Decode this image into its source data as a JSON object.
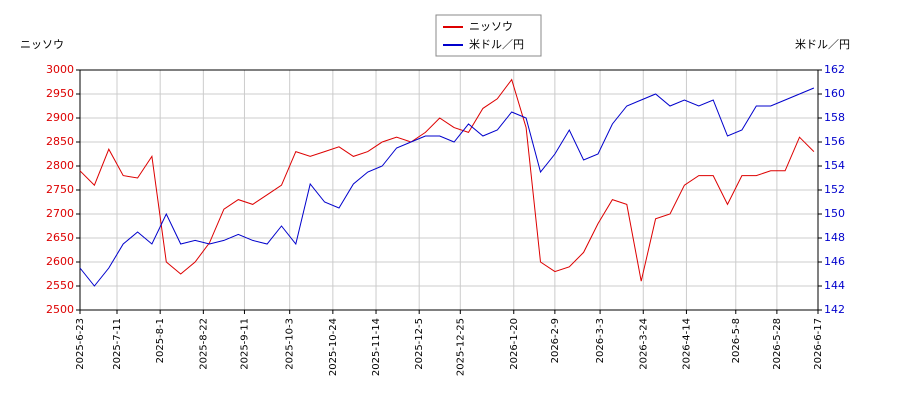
{
  "chart_data": {
    "type": "line",
    "y_label": "ニッソウ",
    "y2_label": "米ドル／円",
    "x": [
      "2025-6-23",
      "2025-6-30",
      "2025-7-7",
      "2025-7-14",
      "2025-7-21",
      "2025-7-28",
      "2025-8-4",
      "2025-8-11",
      "2025-8-18",
      "2025-8-25",
      "2025-9-1",
      "2025-9-8",
      "2025-9-15",
      "2025-9-22",
      "2025-9-29",
      "2025-10-6",
      "2025-10-13",
      "2025-10-20",
      "2025-10-27",
      "2025-11-3",
      "2025-11-10",
      "2025-11-17",
      "2025-11-24",
      "2025-12-1",
      "2025-12-8",
      "2025-12-15",
      "2025-12-22",
      "2025-12-29",
      "2026-1-5",
      "2026-1-12",
      "2026-1-19",
      "2026-1-26",
      "2026-2-2",
      "2026-2-9",
      "2026-2-16",
      "2026-2-23",
      "2026-3-2",
      "2026-3-9",
      "2026-3-16",
      "2026-3-23",
      "2026-3-30",
      "2026-4-6",
      "2026-4-13",
      "2026-4-20",
      "2026-4-27",
      "2026-5-4",
      "2026-5-11",
      "2026-5-18",
      "2026-5-25",
      "2026-6-1",
      "2026-6-8",
      "2026-6-15"
    ],
    "series": [
      {
        "name": "ニッソウ",
        "color": "#dd0000",
        "axis": "y",
        "values": [
          2790,
          2760,
          2835,
          2780,
          2775,
          2820,
          2600,
          2575,
          2600,
          2640,
          2710,
          2730,
          2720,
          2740,
          2760,
          2830,
          2820,
          2830,
          2840,
          2820,
          2830,
          2850,
          2860,
          2850,
          2870,
          2900,
          2880,
          2870,
          2920,
          2940,
          2980,
          2880,
          2600,
          2580,
          2590,
          2620,
          2680,
          2730,
          2720,
          2560,
          2690,
          2700,
          2760,
          2780,
          2780,
          2720,
          2780,
          2780,
          2790,
          2790,
          2860,
          2830
        ]
      },
      {
        "name": "米ドル／円",
        "color": "#0000cc",
        "axis": "y2",
        "values": [
          145.5,
          144,
          145.5,
          147.5,
          148.5,
          147.5,
          150,
          147.5,
          147.8,
          147.5,
          147.8,
          148.3,
          147.8,
          147.5,
          149,
          147.5,
          152.5,
          151,
          150.5,
          152.5,
          153.5,
          154,
          155.5,
          156,
          156.5,
          156.5,
          156,
          157.5,
          156.5,
          157,
          158.5,
          158,
          153.5,
          155,
          157,
          154.5,
          155,
          157.5,
          159,
          159.5,
          160,
          159,
          159.5,
          159,
          159.5,
          156.5,
          157,
          159,
          159,
          159.5,
          160,
          160.5
        ]
      }
    ],
    "xlim": [
      "2025-6-23",
      "2026-6-17"
    ],
    "xticks": [
      "2025-6-23",
      "2025-7-11",
      "2025-8-1",
      "2025-8-22",
      "2025-9-11",
      "2025-10-3",
      "2025-10-24",
      "2025-11-14",
      "2025-12-5",
      "2025-12-25",
      "2026-1-20",
      "2026-2-9",
      "2026-3-3",
      "2026-3-24",
      "2026-4-14",
      "2026-5-8",
      "2026-5-28",
      "2026-6-17"
    ],
    "ylim": [
      2500,
      3000
    ],
    "yticks": [
      2500,
      2550,
      2600,
      2650,
      2700,
      2750,
      2800,
      2850,
      2900,
      2950,
      3000
    ],
    "y2lim": [
      142,
      162
    ],
    "y2ticks": [
      142,
      144,
      146,
      148,
      150,
      152,
      154,
      156,
      158,
      160,
      162
    ],
    "grid": true
  }
}
